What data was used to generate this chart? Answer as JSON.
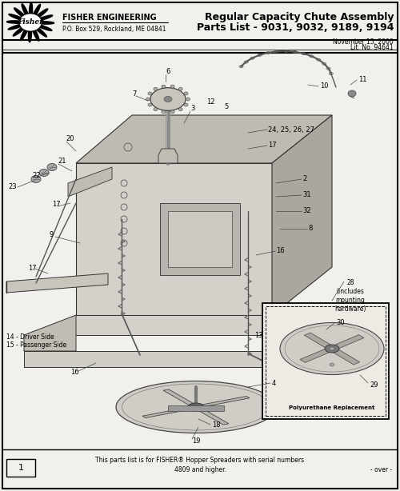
{
  "title_line1": "Regular Capacity Chute Assembly",
  "title_line2": "Parts List - 9031, 9032, 9189, 9194",
  "company_name": "FISHER ENGINEERING",
  "company_address": "P.O. Box 529, Rockland, ME 04841",
  "date": "November 15, 2000",
  "lit_no": "Lit. No. 94641",
  "footer_line1": "This parts list is for FISHER® Hopper Spreaders with serial numbers",
  "footer_line2": "4809 and higher.",
  "footer_right": "- over -",
  "page_num": "1",
  "bg_color": "#f2f0ec",
  "border_color": "#000000"
}
